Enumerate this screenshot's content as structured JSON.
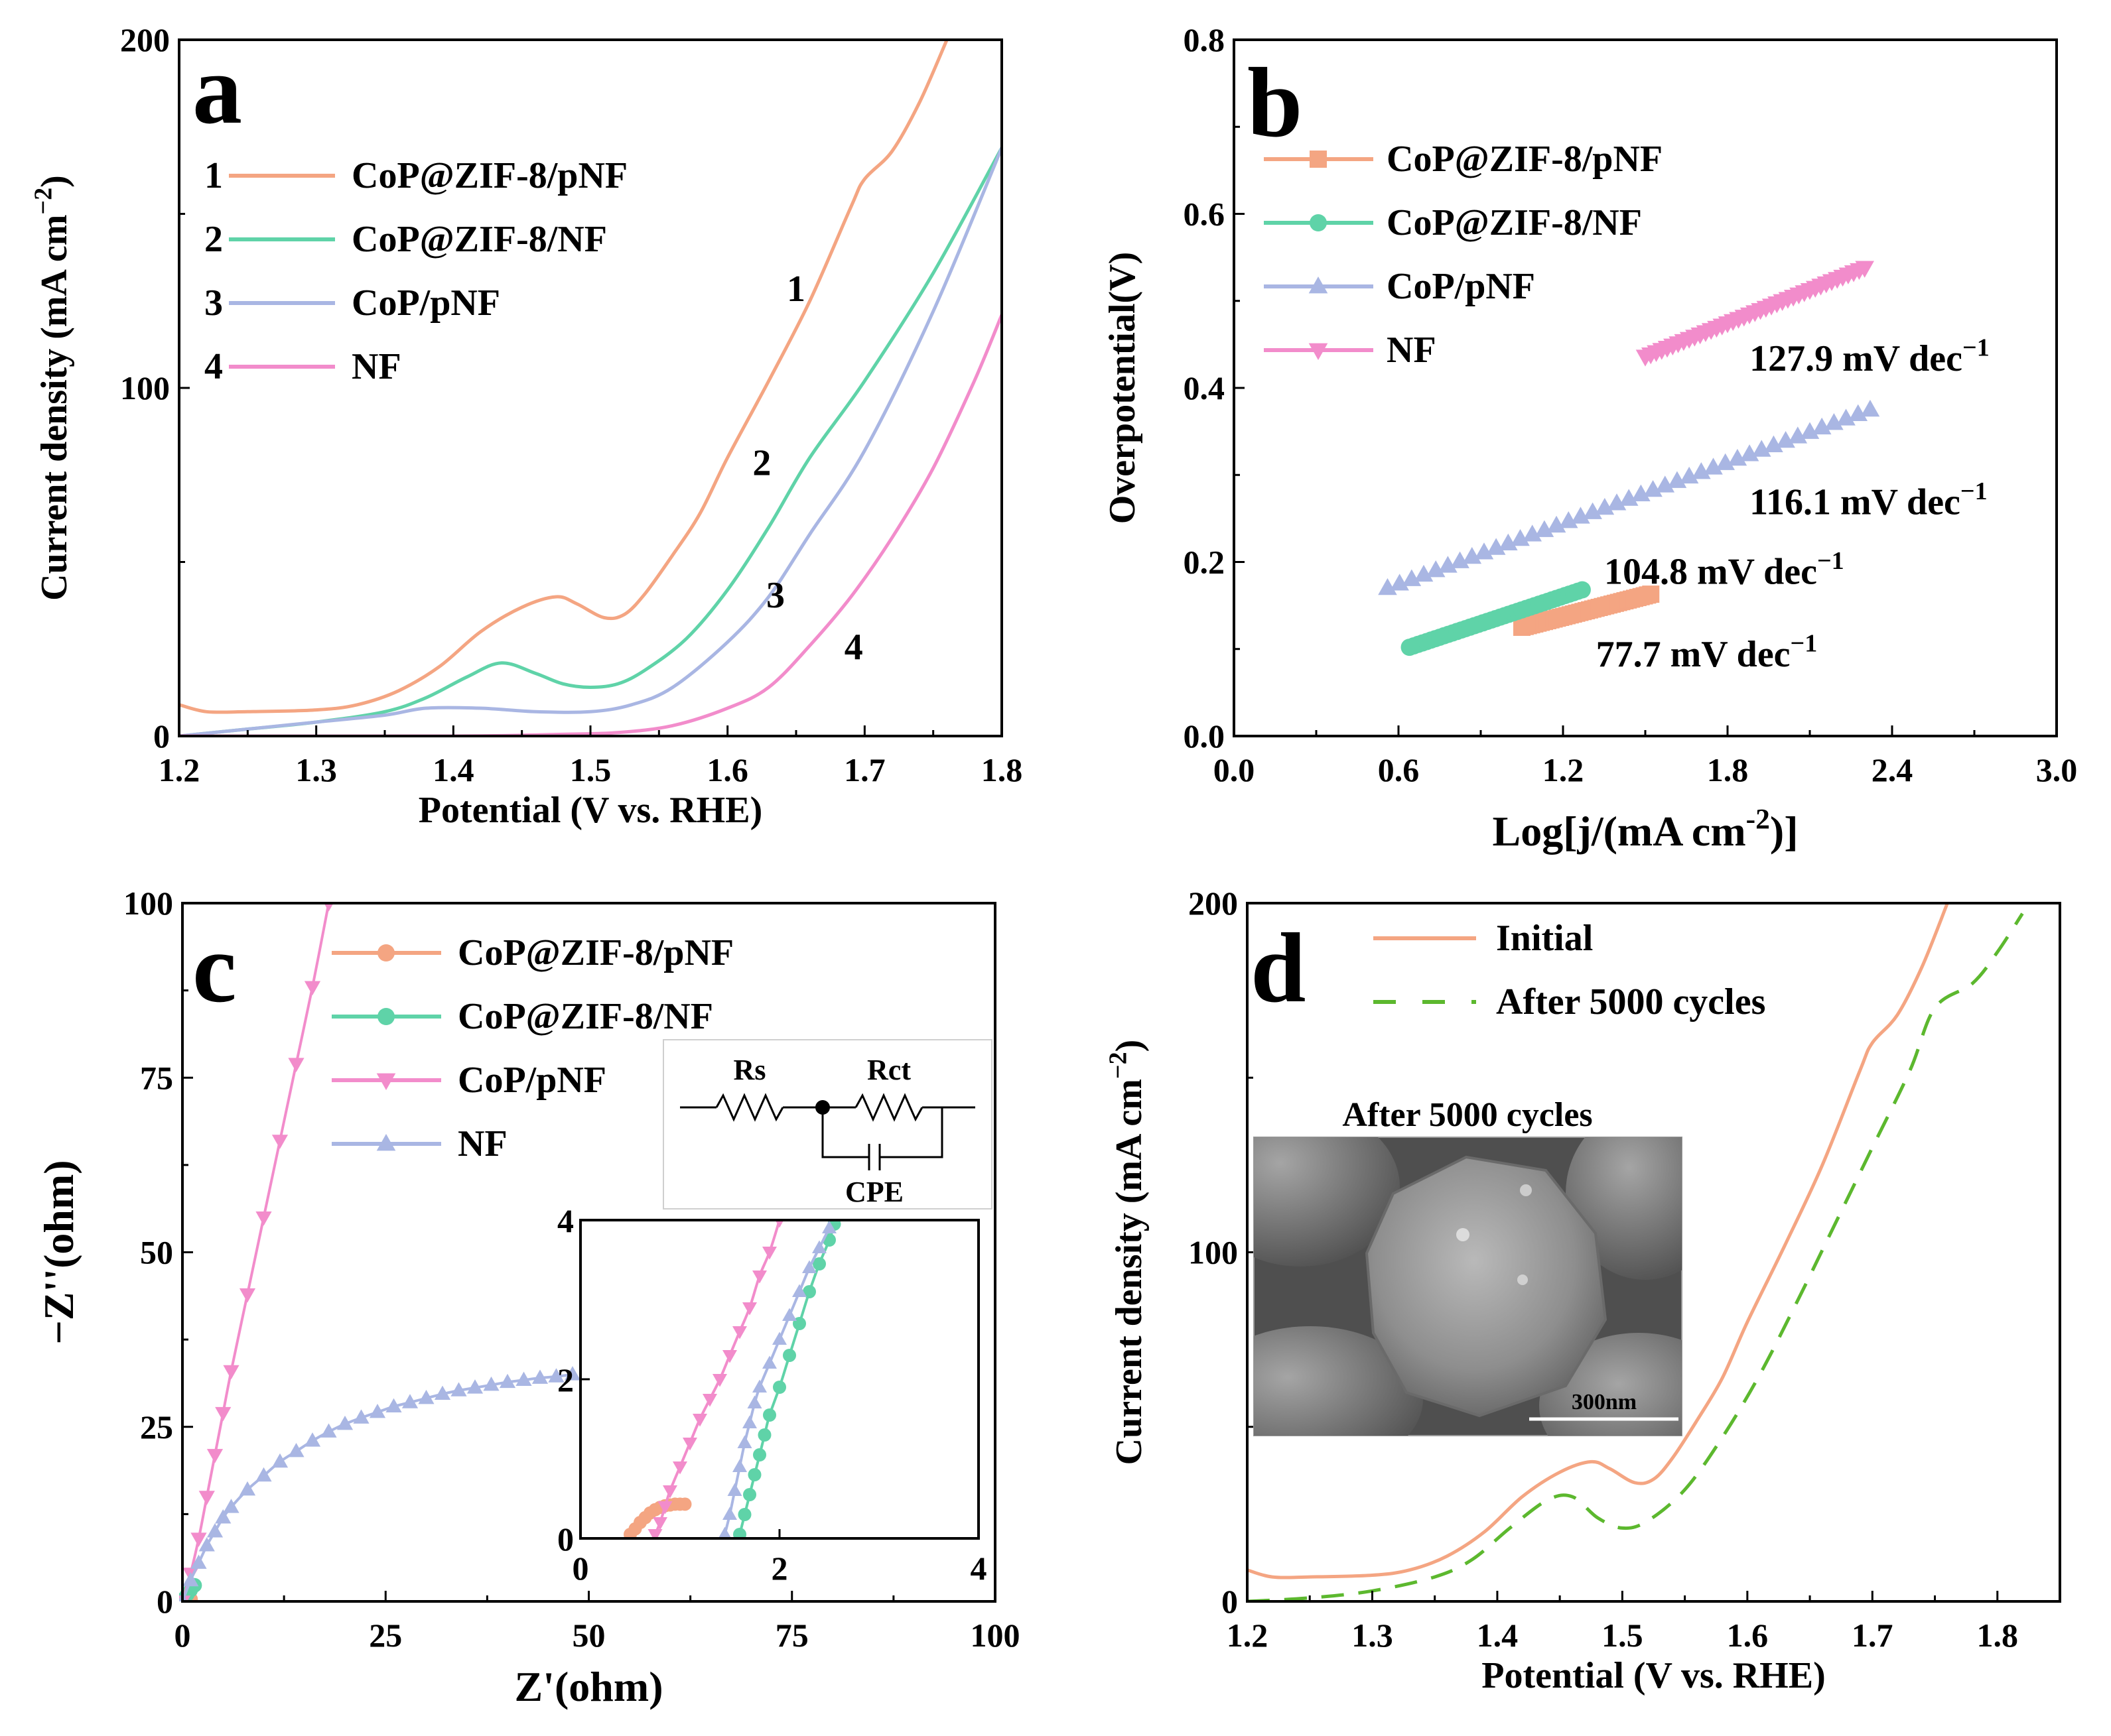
{
  "chart_data": [
    {
      "panel": "a",
      "type": "line",
      "xlabel": "Potential (V vs. RHE)",
      "ylabel": "Current density (mA cm",
      "ylabel_sup": "−2",
      "ylabel_tail": ")",
      "xlim": [
        1.2,
        1.8
      ],
      "ylim": [
        0,
        200
      ],
      "xticks": [
        1.2,
        1.3,
        1.4,
        1.5,
        1.6,
        1.7,
        1.8
      ],
      "yticks": [
        0,
        100,
        200
      ],
      "legend_position": "top-left",
      "series": [
        {
          "name": "CoP@ZIF-8/pNF",
          "legend_num": "1",
          "color": "#f4a582",
          "x": [
            1.2,
            1.22,
            1.25,
            1.3,
            1.33,
            1.36,
            1.39,
            1.42,
            1.45,
            1.475,
            1.49,
            1.51,
            1.525,
            1.54,
            1.56,
            1.58,
            1.6,
            1.63,
            1.66,
            1.69,
            1.7,
            1.72,
            1.74,
            1.76
          ],
          "y": [
            9,
            7,
            7,
            7.5,
            9,
            13,
            20,
            30,
            37,
            40,
            38,
            34,
            35,
            41,
            52,
            64,
            80,
            102,
            125,
            152,
            160,
            168,
            182,
            200
          ]
        },
        {
          "name": "CoP@ZIF-8/NF",
          "legend_num": "2",
          "color": "#5fd3a8",
          "x": [
            1.2,
            1.25,
            1.3,
            1.35,
            1.38,
            1.41,
            1.435,
            1.46,
            1.48,
            1.5,
            1.52,
            1.54,
            1.57,
            1.6,
            1.63,
            1.66,
            1.7,
            1.75,
            1.8
          ],
          "y": [
            0,
            2,
            4,
            7,
            11,
            17,
            21,
            18,
            15,
            14,
            15,
            19,
            28,
            42,
            60,
            80,
            102,
            133,
            169
          ]
        },
        {
          "name": "CoP/pNF",
          "legend_num": "3",
          "color": "#a9b6e3",
          "x": [
            1.2,
            1.25,
            1.3,
            1.35,
            1.38,
            1.42,
            1.46,
            1.5,
            1.53,
            1.56,
            1.6,
            1.63,
            1.66,
            1.7,
            1.75,
            1.8
          ],
          "y": [
            0,
            2,
            4,
            6,
            8,
            8,
            7,
            7,
            9,
            14,
            27,
            40,
            58,
            82,
            122,
            169
          ]
        },
        {
          "name": "NF",
          "legend_num": "4",
          "color": "#f28ccb",
          "x": [
            1.2,
            1.4,
            1.48,
            1.52,
            1.56,
            1.6,
            1.63,
            1.66,
            1.69,
            1.72,
            1.75,
            1.78,
            1.8
          ],
          "y": [
            0,
            0,
            0.5,
            1,
            3,
            8,
            14,
            26,
            40,
            57,
            77,
            102,
            121
          ]
        }
      ],
      "curve_labels": [
        {
          "text": "1",
          "x": 1.65,
          "y": 125
        },
        {
          "text": "2",
          "x": 1.625,
          "y": 75
        },
        {
          "text": "3",
          "x": 1.635,
          "y": 37
        },
        {
          "text": "4",
          "x": 1.692,
          "y": 22
        }
      ],
      "panel_label": "a"
    },
    {
      "panel": "b",
      "type": "scatter",
      "xlabel": "Log[j/(mA cm",
      "xlabel_sup": "-2",
      "xlabel_tail": ")]",
      "ylabel": "Overpotential(V)",
      "xlim": [
        0.0,
        3.0
      ],
      "ylim": [
        0.0,
        0.8
      ],
      "xticks": [
        "0.0",
        "0.6",
        "1.2",
        "1.8",
        "2.4",
        "3.0"
      ],
      "yticks": [
        "0.0",
        "0.2",
        "0.4",
        "0.6",
        "0.8"
      ],
      "legend_position": "top-left",
      "series": [
        {
          "name": "CoP@ZIF-8/pNF",
          "marker": "square",
          "color": "#f4a582",
          "x_start": 1.05,
          "x_end": 1.52,
          "y_start": 0.125,
          "y_end": 0.163
        },
        {
          "name": "CoP@ZIF-8/NF",
          "marker": "circle",
          "color": "#5fd3a8",
          "x_start": 0.64,
          "x_end": 1.27,
          "y_start": 0.102,
          "y_end": 0.168
        },
        {
          "name": "CoP/pNF",
          "marker": "triangle-up",
          "color": "#a9b6e3",
          "x_start": 0.56,
          "x_end": 2.32,
          "y_start": 0.17,
          "y_end": 0.375
        },
        {
          "name": "NF",
          "marker": "triangle-down",
          "color": "#f28ccb",
          "x_start": 1.5,
          "x_end": 2.3,
          "y_start": 0.436,
          "y_end": 0.538
        }
      ],
      "annotations": [
        {
          "text": "127.9 mV dec",
          "sup": "−1",
          "x": 1.88,
          "y": 0.42
        },
        {
          "text": "116.1 mV dec",
          "sup": "−1",
          "x": 1.88,
          "y": 0.255
        },
        {
          "text": "104.8 mV dec",
          "sup": "−1",
          "x": 1.35,
          "y": 0.175
        },
        {
          "text": "77.7 mV dec",
          "sup": "−1",
          "x": 1.32,
          "y": 0.08
        }
      ],
      "panel_label": "b"
    },
    {
      "panel": "c",
      "type": "scatter",
      "xlabel": "Z'(ohm)",
      "ylabel": "−Z''(ohm)",
      "xlim": [
        0,
        100
      ],
      "ylim": [
        0,
        100
      ],
      "xticks": [
        0,
        25,
        50,
        75,
        100
      ],
      "yticks": [
        0,
        25,
        50,
        75,
        100
      ],
      "legend_position": "top-right",
      "series": [
        {
          "name": "CoP@ZIF-8/pNF",
          "marker": "circle",
          "color": "#f4a582",
          "x": [
            0,
            0.3,
            0.6,
            1.0
          ],
          "y": [
            0,
            0.2,
            0.3,
            0.3
          ]
        },
        {
          "name": "CoP@ZIF-8/NF",
          "marker": "circle",
          "color": "#5fd3a8",
          "x": [
            0,
            0.3,
            0.6,
            1.0,
            1.5
          ],
          "y": [
            0,
            0.5,
            1.0,
            1.6,
            2.3
          ]
        },
        {
          "name": "CoP/pNF",
          "marker": "triangle-down",
          "color": "#f28ccb",
          "x": [
            0,
            1,
            2,
            3,
            4,
            5,
            6,
            8,
            10,
            12,
            14,
            16,
            18
          ],
          "y": [
            0,
            4,
            9,
            15,
            21,
            27,
            33,
            44,
            55,
            66,
            77,
            88,
            100
          ]
        },
        {
          "name": "NF",
          "marker": "triangle-up",
          "color": "#a9b6e3",
          "x": [
            0,
            1,
            2,
            3,
            4,
            5,
            6,
            8,
            10,
            12,
            14,
            16,
            18,
            20,
            22,
            24,
            26,
            28,
            30,
            32,
            34,
            36,
            38,
            40,
            42,
            44,
            46,
            48
          ],
          "y": [
            0,
            3,
            5.5,
            8,
            10,
            12,
            13.5,
            16,
            18,
            20,
            21.5,
            23,
            24.3,
            25.4,
            26.3,
            27.1,
            27.9,
            28.5,
            29.1,
            29.7,
            30.2,
            30.6,
            31.0,
            31.4,
            31.7,
            32.0,
            32.2,
            32.5
          ]
        }
      ],
      "inset": {
        "xlim": [
          0,
          4
        ],
        "ylim": [
          0,
          4
        ],
        "xticks": [
          0,
          2,
          4
        ],
        "yticks": [
          0,
          2,
          4
        ],
        "series": [
          {
            "name": "CoP@ZIF-8/pNF",
            "marker": "circle",
            "color": "#f4a582",
            "x": [
              0.5,
              0.55,
              0.6,
              0.65,
              0.7,
              0.75,
              0.8,
              0.85,
              0.9,
              0.95,
              1.0,
              1.05
            ],
            "y": [
              0.05,
              0.12,
              0.2,
              0.26,
              0.32,
              0.36,
              0.39,
              0.41,
              0.42,
              0.43,
              0.43,
              0.43
            ]
          },
          {
            "name": "CoP@ZIF-8/NF",
            "marker": "circle",
            "color": "#5fd3a8",
            "x": [
              1.6,
              1.65,
              1.7,
              1.75,
              1.8,
              1.85,
              1.9,
              2.0,
              2.1,
              2.2,
              2.3,
              2.4,
              2.5,
              2.55
            ],
            "y": [
              0.05,
              0.3,
              0.55,
              0.8,
              1.05,
              1.3,
              1.55,
              1.9,
              2.3,
              2.7,
              3.1,
              3.45,
              3.75,
              3.95
            ]
          },
          {
            "name": "CoP/pNF",
            "marker": "triangle-down",
            "color": "#f28ccb",
            "x": [
              0.75,
              0.8,
              0.85,
              0.9,
              1.0,
              1.1,
              1.2,
              1.3,
              1.4,
              1.5,
              1.6,
              1.7,
              1.8,
              1.9,
              2.0
            ],
            "y": [
              0.05,
              0.2,
              0.4,
              0.6,
              0.9,
              1.2,
              1.5,
              1.75,
              2.0,
              2.3,
              2.6,
              2.9,
              3.3,
              3.6,
              4.0
            ]
          },
          {
            "name": "NF",
            "marker": "triangle-up",
            "color": "#a9b6e3",
            "x": [
              1.45,
              1.5,
              1.55,
              1.6,
              1.65,
              1.7,
              1.75,
              1.8,
              1.9,
              2.0,
              2.1,
              2.2,
              2.3,
              2.4,
              2.5
            ],
            "y": [
              0.05,
              0.3,
              0.6,
              0.9,
              1.2,
              1.45,
              1.7,
              1.9,
              2.2,
              2.5,
              2.8,
              3.1,
              3.4,
              3.65,
              3.9
            ]
          }
        ]
      },
      "circuit": {
        "labels": [
          "Rs",
          "Rct",
          "CPE"
        ]
      },
      "panel_label": "c"
    },
    {
      "panel": "d",
      "type": "line",
      "xlabel": "Potential (V vs. RHE)",
      "ylabel": "Current density (mA cm",
      "ylabel_sup": "−2",
      "ylabel_tail": ")",
      "xlim": [
        1.2,
        1.85
      ],
      "ylim": [
        0,
        200
      ],
      "xticks": [
        1.2,
        1.3,
        1.4,
        1.5,
        1.6,
        1.7,
        1.8
      ],
      "yticks": [
        0,
        100,
        200
      ],
      "legend_position": "top-right",
      "series": [
        {
          "name": "Initial",
          "style": "solid",
          "color": "#f4a582",
          "x": [
            1.2,
            1.22,
            1.25,
            1.3,
            1.33,
            1.36,
            1.39,
            1.42,
            1.45,
            1.475,
            1.49,
            1.51,
            1.525,
            1.54,
            1.56,
            1.58,
            1.6,
            1.63,
            1.66,
            1.69,
            1.7,
            1.72,
            1.74,
            1.76
          ],
          "y": [
            9,
            7,
            7,
            7.5,
            9,
            13,
            20,
            30,
            37,
            40,
            38,
            34,
            35,
            41,
            52,
            64,
            80,
            102,
            125,
            152,
            160,
            168,
            182,
            200
          ]
        },
        {
          "name": "After 5000 cycles",
          "style": "dashed",
          "color": "#5cb82e",
          "x": [
            1.2,
            1.25,
            1.3,
            1.35,
            1.38,
            1.41,
            1.44,
            1.46,
            1.48,
            1.5,
            1.52,
            1.55,
            1.58,
            1.61,
            1.64,
            1.67,
            1.7,
            1.73,
            1.75,
            1.78,
            1.8,
            1.82
          ],
          "y": [
            0,
            1,
            3,
            7,
            12,
            21,
            29,
            30,
            24,
            21,
            23,
            32,
            47,
            65,
            86,
            108,
            130,
            152,
            170,
            177,
            186,
            197
          ]
        }
      ],
      "inset_image": {
        "title": "After 5000 cycles",
        "scale_bar": "300nm"
      },
      "panel_label": "d"
    }
  ]
}
